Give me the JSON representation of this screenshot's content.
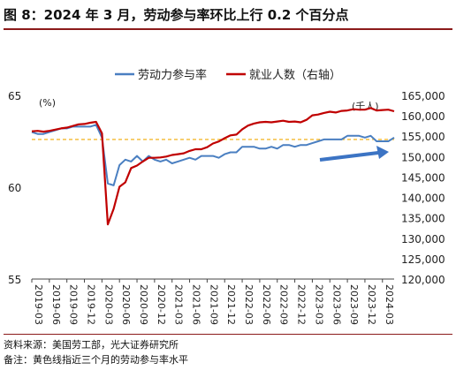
{
  "figure_title": "图 8：2024 年 3 月，劳动参与率环比上行 0.2 个百分点",
  "source_note": "资料来源：美国劳工部，光大证券研究所",
  "remark_note": "备注：黄色线指近三个月的劳动参与率水平",
  "colors": {
    "lfpr": "#4a7fc1",
    "employment": "#c00000",
    "reference_line": "#f2a900",
    "arrow": "#3c74c4",
    "rule": "#8b1a1a"
  },
  "chart_data": {
    "type": "line",
    "legend": [
      "劳动力参与率",
      "就业人数（右轴）"
    ],
    "legend_position": "top-center",
    "left_axis": {
      "unit_label": "(%)",
      "ticks": [
        55,
        60,
        65
      ],
      "range": [
        55,
        65
      ]
    },
    "right_axis": {
      "unit_label": "(千人)",
      "ticks": [
        120000,
        125000,
        130000,
        135000,
        140000,
        145000,
        150000,
        155000,
        160000,
        165000
      ],
      "range": [
        120000,
        165000
      ]
    },
    "x_tick_labels": [
      "2019-03",
      "2019-06",
      "2019-09",
      "2019-12",
      "2020-03",
      "2020-06",
      "2020-09",
      "2020-12",
      "2021-03",
      "2021-06",
      "2021-09",
      "2021-12",
      "2022-03",
      "2022-06",
      "2022-09",
      "2022-12",
      "2023-03",
      "2023-06",
      "2023-09",
      "2023-12",
      "2024-03"
    ],
    "start_month": "2019-03",
    "reference_line_value": 62.6,
    "series": [
      {
        "name": "劳动力参与率",
        "axis": "left",
        "values": [
          63.0,
          62.9,
          62.9,
          63.0,
          63.1,
          63.2,
          63.2,
          63.3,
          63.3,
          63.3,
          63.3,
          63.4,
          62.7,
          60.2,
          60.1,
          61.2,
          61.5,
          61.4,
          61.7,
          61.4,
          61.7,
          61.5,
          61.4,
          61.5,
          61.3,
          61.4,
          61.5,
          61.6,
          61.5,
          61.7,
          61.7,
          61.7,
          61.6,
          61.8,
          61.9,
          61.9,
          62.2,
          62.2,
          62.2,
          62.1,
          62.1,
          62.2,
          62.1,
          62.3,
          62.3,
          62.2,
          62.3,
          62.3,
          62.4,
          62.5,
          62.6,
          62.6,
          62.6,
          62.6,
          62.8,
          62.8,
          62.8,
          62.7,
          62.8,
          62.5,
          62.5,
          62.5,
          62.7
        ]
      },
      {
        "name": "就业人数（右轴）",
        "axis": "right",
        "values": [
          156200,
          156300,
          156100,
          156300,
          156600,
          156900,
          157100,
          157500,
          157900,
          158000,
          158300,
          158500,
          155700,
          133400,
          137200,
          142600,
          143700,
          147200,
          147800,
          148800,
          149700,
          149700,
          149800,
          150000,
          150400,
          150600,
          150800,
          151400,
          151800,
          151800,
          152300,
          153200,
          153700,
          154500,
          155200,
          155400,
          156700,
          157600,
          158100,
          158400,
          158500,
          158400,
          158600,
          158800,
          158500,
          158600,
          158400,
          159000,
          160100,
          160300,
          160700,
          161000,
          160800,
          161200,
          161300,
          161600,
          161500,
          161500,
          161900,
          161300,
          161400,
          161500,
          161100
        ]
      }
    ],
    "annotation": "rising arrow from 2022-12 toward 2024-03"
  }
}
